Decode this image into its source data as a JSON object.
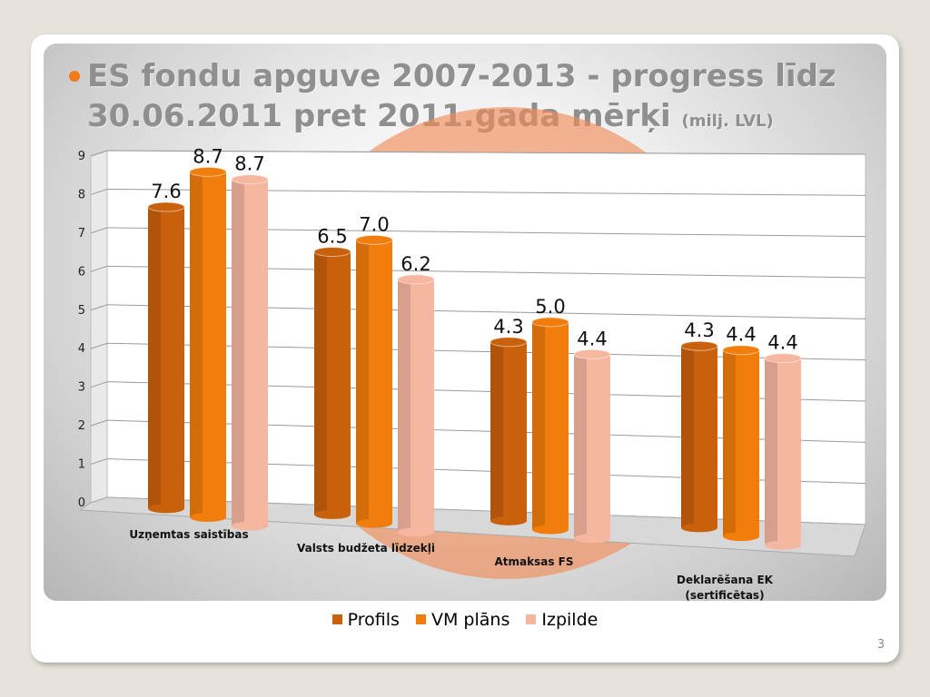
{
  "slide": {
    "title_main": "ES fondu apguve 2007-2013 - progress līdz 30.06.2011 pret 2011.gada mērķi",
    "title_unit": "(milj. LVL)",
    "page_number": "3"
  },
  "chart_data": {
    "type": "bar",
    "categories": [
      "Uzņemtas saistības",
      "Valsts budžeta līdzekļi",
      "Atmaksas FS",
      "Deklarēšana EK (sertificētas)"
    ],
    "series": [
      {
        "name": "Profils",
        "values": [
          7.6,
          6.5,
          4.3,
          4.3
        ],
        "labels": [
          "7.6",
          "6.5",
          "4.3",
          "4.3"
        ],
        "color": "#c8600c"
      },
      {
        "name": "VM plāns",
        "values": [
          8.7,
          7.0,
          5.0,
          4.4
        ],
        "labels": [
          "8.7",
          "7.0",
          "5.0",
          "4.4"
        ],
        "color": "#f07d0c"
      },
      {
        "name": "Izpilde",
        "values": [
          8.7,
          6.2,
          4.4,
          4.4
        ],
        "labels": [
          "8.7",
          "6.2",
          "4.4",
          "4.4"
        ],
        "color": "#f6b7a0"
      }
    ],
    "ylim": [
      0,
      9
    ],
    "yticks": [
      "0",
      "1",
      "2",
      "3",
      "4",
      "5",
      "6",
      "7",
      "8",
      "9"
    ],
    "grid": true,
    "legend_position": "bottom"
  }
}
